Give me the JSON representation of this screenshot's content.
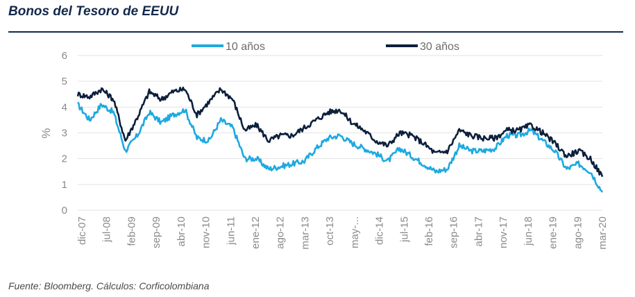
{
  "title": "Bonos del Tesoro de EEUU",
  "source": "Fuente: Bloomberg. Cálculos: Corficolombiana",
  "chart_data": {
    "type": "line",
    "ylabel": "%",
    "xlabel": "",
    "ylim": [
      0,
      6
    ],
    "yticks": [
      0,
      1,
      2,
      3,
      4,
      5,
      6
    ],
    "grid": true,
    "legend_position": "top",
    "x_start": "dic-07",
    "x_end": "mar-20",
    "x_tick_labels": [
      "dic-07",
      "jul-08",
      "feb-09",
      "sep-09",
      "abr-10",
      "nov-10",
      "jun-11",
      "ene-12",
      "ago-12",
      "mar-13",
      "oct-13",
      "may-...",
      "dic-14",
      "jul-15",
      "feb-16",
      "sep-16",
      "abr-17",
      "nov-17",
      "jun-18",
      "ene-19",
      "ago-19",
      "mar-20"
    ],
    "x": [
      "dic-07",
      "mar-08",
      "jul-08",
      "oct-08",
      "dic-08",
      "feb-09",
      "jun-09",
      "sep-09",
      "dic-09",
      "abr-10",
      "ago-10",
      "nov-10",
      "feb-11",
      "jun-11",
      "sep-11",
      "ene-12",
      "jun-12",
      "ago-12",
      "dic-12",
      "mar-13",
      "jun-13",
      "sep-13",
      "dic-13",
      "may-14",
      "sep-14",
      "dic-14",
      "feb-15",
      "jul-15",
      "oct-15",
      "feb-16",
      "jul-16",
      "sep-16",
      "dic-16",
      "abr-17",
      "jul-17",
      "nov-17",
      "feb-18",
      "jun-18",
      "nov-18",
      "ene-19",
      "may-19",
      "ago-19",
      "nov-19",
      "feb-20",
      "mar-20"
    ],
    "series": [
      {
        "name": "10 años",
        "color": "#1ea9e1",
        "values": [
          4.1,
          3.5,
          4.1,
          3.8,
          2.3,
          2.9,
          3.8,
          3.4,
          3.7,
          3.9,
          2.8,
          2.7,
          3.5,
          3.2,
          2.0,
          2.0,
          1.6,
          1.7,
          1.8,
          1.9,
          2.4,
          2.8,
          2.9,
          2.6,
          2.4,
          2.2,
          1.9,
          2.4,
          2.1,
          1.8,
          1.5,
          1.6,
          2.5,
          2.3,
          2.3,
          2.4,
          2.9,
          2.9,
          3.1,
          2.7,
          2.3,
          1.6,
          1.8,
          1.5,
          0.7
        ]
      },
      {
        "name": "30 años",
        "color": "#0d1f3c",
        "values": [
          4.5,
          4.4,
          4.7,
          4.3,
          2.7,
          3.6,
          4.6,
          4.3,
          4.6,
          4.7,
          3.7,
          4.2,
          4.7,
          4.3,
          3.1,
          3.3,
          2.7,
          2.9,
          2.9,
          3.2,
          3.5,
          3.8,
          3.9,
          3.4,
          3.1,
          2.7,
          2.5,
          3.0,
          2.9,
          2.6,
          2.2,
          2.3,
          3.1,
          2.9,
          2.8,
          2.8,
          3.1,
          3.1,
          3.3,
          3.0,
          2.6,
          2.1,
          2.3,
          2.0,
          1.3
        ]
      }
    ]
  }
}
